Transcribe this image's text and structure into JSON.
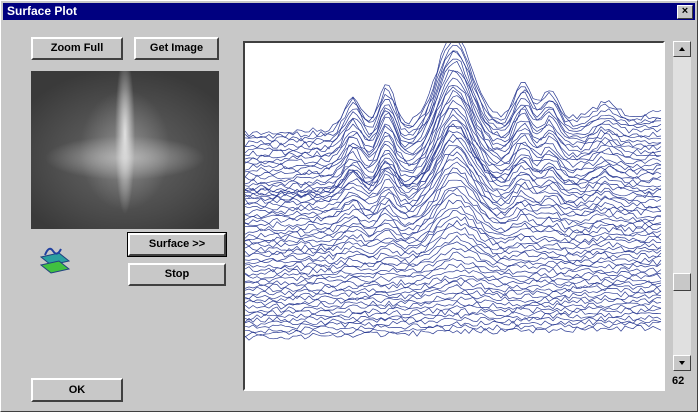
{
  "window": {
    "title": "Surface Plot"
  },
  "buttons": {
    "zoom_full": "Zoom Full",
    "get_image": "Get Image",
    "surface": "Surface >>",
    "stop": "Stop",
    "ok": "OK"
  },
  "scrollbar": {
    "value": 62
  }
}
